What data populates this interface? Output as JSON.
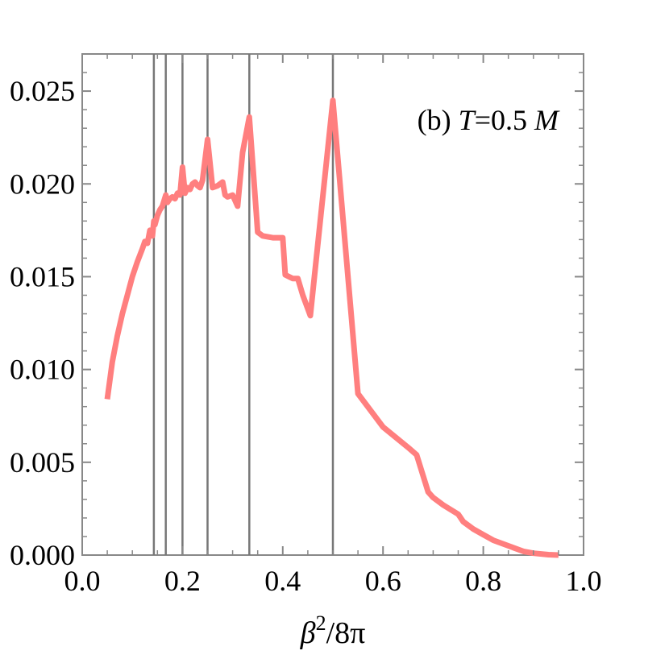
{
  "chart_data": {
    "type": "line",
    "title": "",
    "annotation": {
      "prefix": "(b) ",
      "var": "T",
      "rest": "=0.5 ",
      "unit": "M"
    },
    "xlabel": {
      "base": "β",
      "sup": "2",
      "rest": "/8π"
    },
    "ylabel": "",
    "xlim": [
      0.0,
      1.0
    ],
    "ylim": [
      0.0,
      0.027
    ],
    "xticks": [
      0.0,
      0.2,
      0.4,
      0.6,
      0.8,
      1.0
    ],
    "xtick_labels": [
      "0.0",
      "0.2",
      "0.4",
      "0.6",
      "0.8",
      "1.0"
    ],
    "yticks": [
      0.0,
      0.005,
      0.01,
      0.015,
      0.02,
      0.025
    ],
    "ytick_labels": [
      "0.000",
      "0.005",
      "0.010",
      "0.015",
      "0.020",
      "0.025"
    ],
    "vertical_lines": [
      0.1429,
      0.1667,
      0.2,
      0.25,
      0.3333,
      0.5
    ],
    "colors": {
      "series": "#ff7f7f",
      "vlines": "#777777",
      "frame": "#888888"
    },
    "grid": false,
    "series": [
      {
        "x": [
          0.05,
          0.06,
          0.07,
          0.08,
          0.09,
          0.1,
          0.11,
          0.12,
          0.125,
          0.13,
          0.135,
          0.14,
          0.1429,
          0.145,
          0.15,
          0.155,
          0.16,
          0.1667,
          0.17,
          0.175,
          0.18,
          0.185,
          0.19,
          0.195,
          0.2,
          0.205,
          0.21,
          0.215,
          0.22,
          0.225,
          0.23,
          0.235,
          0.24,
          0.25,
          0.26,
          0.27,
          0.28,
          0.285,
          0.29,
          0.3,
          0.31,
          0.32,
          0.3333,
          0.35,
          0.36,
          0.38,
          0.4,
          0.405,
          0.42,
          0.43,
          0.44,
          0.455,
          0.5,
          0.55,
          0.6,
          0.65,
          0.667,
          0.69,
          0.7,
          0.72,
          0.75,
          0.76,
          0.78,
          0.8,
          0.82,
          0.85,
          0.88,
          0.9,
          0.93,
          0.95
        ],
        "y": [
          0.0084,
          0.0104,
          0.0118,
          0.013,
          0.014,
          0.015,
          0.0158,
          0.0165,
          0.0169,
          0.0168,
          0.0175,
          0.0172,
          0.018,
          0.0178,
          0.0183,
          0.0186,
          0.0188,
          0.0194,
          0.019,
          0.0192,
          0.0193,
          0.0192,
          0.0195,
          0.0194,
          0.0209,
          0.0195,
          0.0198,
          0.0197,
          0.02,
          0.0201,
          0.0199,
          0.0198,
          0.0202,
          0.0224,
          0.0198,
          0.0199,
          0.0201,
          0.0194,
          0.0193,
          0.0194,
          0.0188,
          0.0217,
          0.0236,
          0.0174,
          0.0172,
          0.0171,
          0.0171,
          0.0151,
          0.0149,
          0.0149,
          0.014,
          0.0129,
          0.0245,
          0.0087,
          0.0069,
          0.0058,
          0.0054,
          0.0034,
          0.0031,
          0.0027,
          0.0022,
          0.0018,
          0.0014,
          0.0011,
          0.0008,
          0.0005,
          0.0002,
          0.0001,
          2e-05,
          0.0
        ]
      }
    ]
  }
}
